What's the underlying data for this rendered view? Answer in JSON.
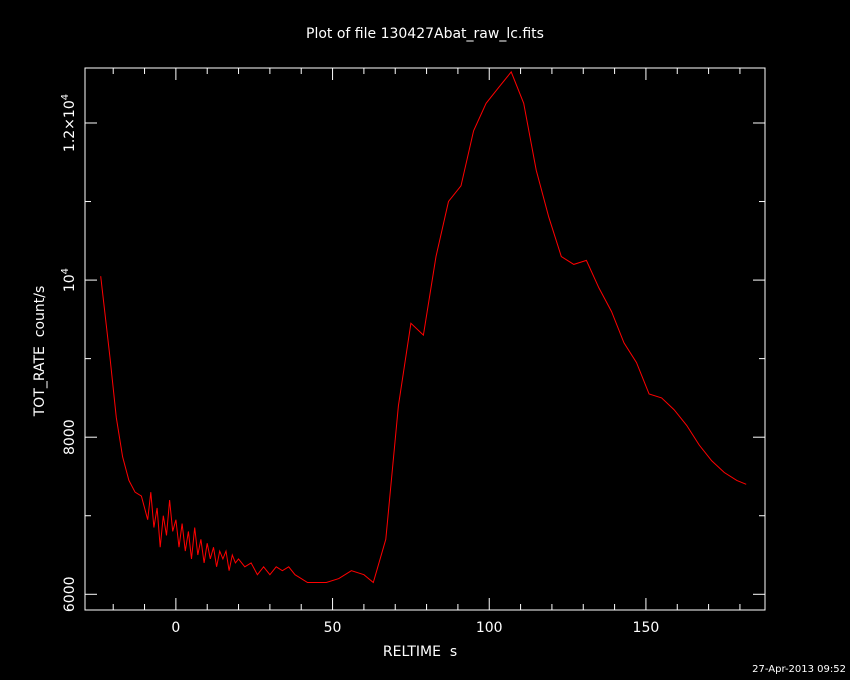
{
  "chart_data": {
    "type": "line",
    "title": "Plot of file 130427Abat_raw_lc.fits",
    "xlabel": "RELTIME  s",
    "ylabel": "TOT_RATE  count/s",
    "timestamp": "27-Apr-2013 09:52",
    "xlim": [
      -29,
      188
    ],
    "ylim": [
      5800,
      12700
    ],
    "x_ticks": [
      {
        "value": 0,
        "label": "0"
      },
      {
        "value": 50,
        "label": "50"
      },
      {
        "value": 100,
        "label": "100"
      },
      {
        "value": 150,
        "label": "150"
      }
    ],
    "y_ticks": [
      {
        "value": 6000,
        "label": "6000"
      },
      {
        "value": 8000,
        "label": "8000"
      },
      {
        "value": 10000,
        "label_base": "10",
        "label_exp": "4"
      },
      {
        "value": 12000,
        "label_base": "1.2×10",
        "label_exp": "4"
      }
    ],
    "line_color": "#ff0000",
    "series": [
      {
        "x": [
          -24,
          -21,
          -19,
          -17,
          -15,
          -13,
          -11,
          -9,
          -8,
          -7,
          -6,
          -5,
          -4,
          -3,
          -2,
          -1,
          0,
          1,
          2,
          3,
          4,
          5,
          6,
          7,
          8,
          9,
          10,
          11,
          12,
          13,
          14,
          15,
          16,
          17,
          18,
          19,
          20,
          22,
          24,
          26,
          28,
          30,
          32,
          34,
          36,
          38,
          40,
          42,
          45,
          48,
          52,
          56,
          60,
          63,
          67,
          71,
          75,
          79,
          83,
          87,
          91,
          95,
          99,
          103,
          107,
          111,
          115,
          119,
          123,
          127,
          131,
          135,
          139,
          143,
          147,
          151,
          155,
          159,
          163,
          167,
          171,
          175,
          179,
          182
        ],
        "y": [
          10050,
          9000,
          8250,
          7750,
          7450,
          7300,
          7250,
          6950,
          7300,
          6850,
          7100,
          6600,
          7000,
          6750,
          7200,
          6800,
          6950,
          6600,
          6900,
          6550,
          6800,
          6450,
          6850,
          6500,
          6700,
          6400,
          6650,
          6450,
          6600,
          6350,
          6550,
          6450,
          6550,
          6300,
          6500,
          6400,
          6450,
          6350,
          6400,
          6250,
          6350,
          6250,
          6350,
          6300,
          6350,
          6250,
          6200,
          6150,
          6150,
          6150,
          6200,
          6300,
          6250,
          6150,
          6700,
          8400,
          9450,
          9300,
          10300,
          11000,
          11200,
          11900,
          12250,
          12450,
          12650,
          12250,
          11400,
          10800,
          10300,
          10200,
          10250,
          9900,
          9600,
          9200,
          8950,
          8550,
          8500,
          8350,
          8150,
          7900,
          7700,
          7550,
          7450,
          7400
        ]
      }
    ]
  }
}
